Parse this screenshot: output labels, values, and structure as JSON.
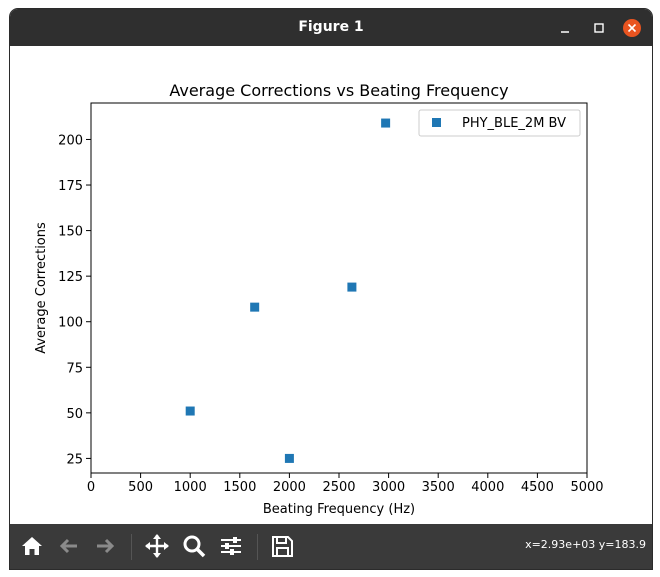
{
  "window": {
    "title": "Figure 1"
  },
  "toolbar": {
    "coords": "x=2.93e+03 y=183.9"
  },
  "chart_data": {
    "type": "scatter",
    "title": "Average Corrections vs Beating Frequency",
    "xlabel": "Beating Frequency (Hz)",
    "ylabel": "Average Corrections",
    "xlim": [
      0,
      5000
    ],
    "ylim": [
      17,
      220
    ],
    "x_ticks": [
      "0",
      "500",
      "1000",
      "1500",
      "2000",
      "2500",
      "3000",
      "3500",
      "4000",
      "4500",
      "5000"
    ],
    "y_ticks": [
      "25",
      "50",
      "75",
      "100",
      "125",
      "150",
      "175",
      "200"
    ],
    "legend_position": "top-right",
    "marker": "square",
    "series": [
      {
        "name": "PHY_BLE_2M BV",
        "color": "#1f77b4",
        "points": [
          {
            "x": 1000,
            "y": 51
          },
          {
            "x": 1650,
            "y": 108
          },
          {
            "x": 2000,
            "y": 25
          },
          {
            "x": 2630,
            "y": 119
          },
          {
            "x": 2970,
            "y": 209
          }
        ]
      }
    ]
  }
}
